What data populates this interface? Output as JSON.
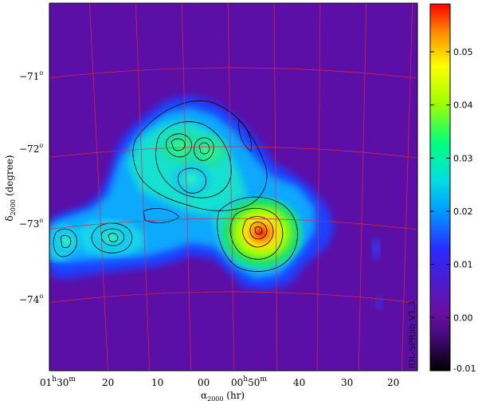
{
  "chart_data": {
    "type": "heatmap",
    "title": "",
    "xlabel": {
      "main": "α",
      "sub": "2000",
      "unit": " (hr)"
    },
    "ylabel": {
      "main": "δ",
      "sub": "2000",
      "unit": " (degree)"
    },
    "y_ticks": [
      {
        "deg": "−71",
        "sup": "o"
      },
      {
        "deg": "−72",
        "sup": "o"
      },
      {
        "deg": "−73",
        "sup": "o"
      },
      {
        "deg": "−74",
        "sup": "o"
      }
    ],
    "x_ticks": [
      {
        "main": "01",
        "sup1": "h",
        "mid": "30",
        "sup2": "m"
      },
      {
        "main": "20"
      },
      {
        "main": "10"
      },
      {
        "main": "00"
      },
      {
        "main": "00",
        "sup1": "h",
        "mid": "50",
        "sup2": "m"
      },
      {
        "main": "40"
      },
      {
        "main": "30"
      },
      {
        "main": "20"
      }
    ],
    "colorbar": {
      "range": [
        -0.01,
        0.059
      ],
      "ticks": [
        "0.05",
        "0.04",
        "0.03",
        "0.02",
        "0.01",
        "0.00",
        "-0.01"
      ],
      "tick_values": [
        0.05,
        0.04,
        0.03,
        0.02,
        0.01,
        0.0,
        -0.01
      ],
      "colormap": [
        "#000000",
        "#6a0fa0",
        "#2020ff",
        "#00c8ff",
        "#00ff90",
        "#b0ff00",
        "#ffff00",
        "#ff8c00",
        "#ff0000"
      ]
    },
    "background_color": "#5b0fa6",
    "grid_color": "#e0283c",
    "contour_color": "#000000",
    "peak_value": 0.057,
    "watermark": "IDL-SPRlib V1.3"
  }
}
